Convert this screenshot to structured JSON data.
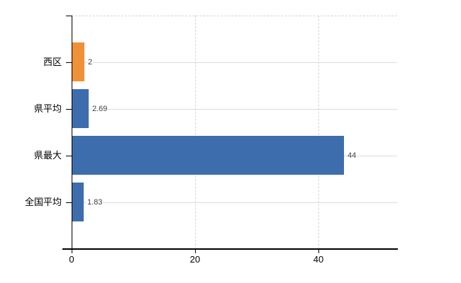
{
  "chart_data": {
    "type": "bar",
    "orientation": "horizontal",
    "title": "",
    "xlabel": "",
    "ylabel": "",
    "categories": [
      "西区",
      "県平均",
      "県最大",
      "全国平均"
    ],
    "values": [
      2,
      2.69,
      44,
      1.83
    ],
    "value_labels": [
      "2",
      "2.69",
      "44",
      "1.83"
    ],
    "bar_colors": [
      "#ef9139",
      "#3d6dad",
      "#3d6dad",
      "#3d6dad"
    ],
    "x_ticks": [
      0,
      20,
      40
    ],
    "x_tick_labels": [
      "0",
      "20",
      "40"
    ],
    "xlim": [
      0,
      52.8
    ],
    "grid": true,
    "legend": "none"
  },
  "colors": {
    "background": "#ffffff",
    "axis": "#000000",
    "dashed_grid": "#d4d4d4",
    "row_line": "#d9ded9",
    "value_label": "#404040",
    "category_label": "#000000",
    "bar_blue": "#3d6dad",
    "bar_orange": "#ef9139"
  }
}
